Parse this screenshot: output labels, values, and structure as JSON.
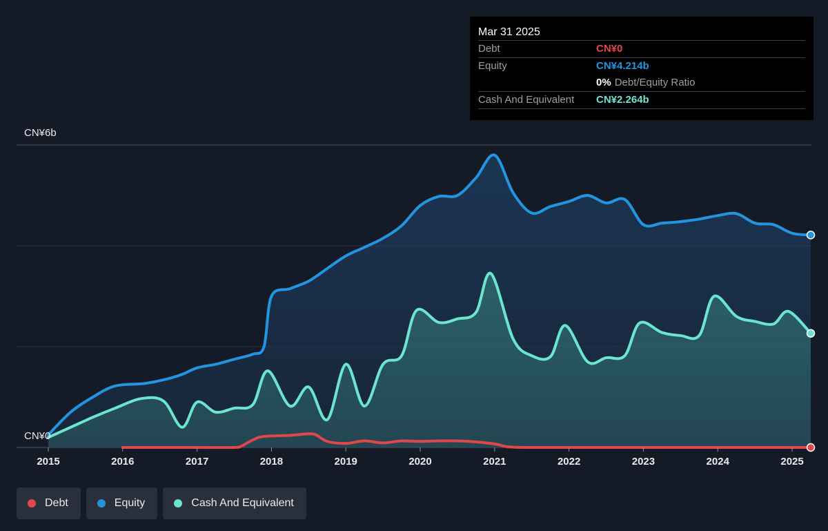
{
  "tooltip": {
    "date": "Mar 31 2025",
    "debt_label": "Debt",
    "debt_value": "CN¥0",
    "equity_label": "Equity",
    "equity_value": "CN¥4.214b",
    "ratio_value": "0%",
    "ratio_label": "Debt/Equity Ratio",
    "cash_label": "Cash And Equivalent",
    "cash_value": "CN¥2.264b"
  },
  "legend": [
    {
      "label": "Debt",
      "color": "#e0474c"
    },
    {
      "label": "Equity",
      "color": "#2394df"
    },
    {
      "label": "Cash And Equivalent",
      "color": "#6ce5d0"
    }
  ],
  "colors": {
    "debt": "#e0474c",
    "equity": "#2394df",
    "cash": "#6ce5d0",
    "grid": "#3a4150",
    "text": "#e8eaed"
  },
  "chart_data": {
    "type": "area",
    "ylim": [
      0,
      6
    ],
    "y_tick_labels": [
      "CN¥6b",
      "CN¥0"
    ],
    "x_ticks": [
      2015,
      2016,
      2017,
      2018,
      2019,
      2020,
      2021,
      2022,
      2023,
      2024,
      2025
    ],
    "x_range": [
      2015.0,
      2025.25
    ],
    "grid": true,
    "legend_position": "bottom-left",
    "series": [
      {
        "name": "Equity",
        "x": [
          2015.0,
          2015.3,
          2015.6,
          2015.9,
          2016.3,
          2016.6,
          2016.8,
          2017.0,
          2017.25,
          2017.5,
          2017.75,
          2017.9,
          2018.0,
          2018.25,
          2018.5,
          2018.75,
          2019.0,
          2019.25,
          2019.5,
          2019.75,
          2020.0,
          2020.25,
          2020.5,
          2020.75,
          2021.0,
          2021.25,
          2021.5,
          2021.75,
          2022.0,
          2022.25,
          2022.5,
          2022.75,
          2023.0,
          2023.25,
          2023.5,
          2023.75,
          2024.0,
          2024.25,
          2024.5,
          2024.75,
          2025.0,
          2025.25
        ],
        "values": [
          0.25,
          0.7,
          1.0,
          1.22,
          1.27,
          1.36,
          1.45,
          1.58,
          1.65,
          1.75,
          1.85,
          2.0,
          3.0,
          3.15,
          3.3,
          3.55,
          3.8,
          3.97,
          4.15,
          4.4,
          4.8,
          4.98,
          5.0,
          5.35,
          5.8,
          5.05,
          4.65,
          4.78,
          4.88,
          5.0,
          4.85,
          4.92,
          4.42,
          4.45,
          4.48,
          4.53,
          4.6,
          4.64,
          4.45,
          4.42,
          4.25,
          4.214
        ]
      },
      {
        "name": "Cash And Equivalent",
        "x": [
          2015.0,
          2015.3,
          2015.6,
          2015.9,
          2016.25,
          2016.55,
          2016.8,
          2017.0,
          2017.25,
          2017.5,
          2017.75,
          2017.95,
          2018.25,
          2018.5,
          2018.75,
          2019.0,
          2019.25,
          2019.5,
          2019.75,
          2019.95,
          2020.25,
          2020.5,
          2020.75,
          2020.95,
          2021.25,
          2021.5,
          2021.75,
          2021.95,
          2022.25,
          2022.5,
          2022.75,
          2022.95,
          2023.25,
          2023.5,
          2023.75,
          2023.95,
          2024.25,
          2024.5,
          2024.75,
          2024.95,
          2025.25
        ],
        "values": [
          0.2,
          0.4,
          0.6,
          0.78,
          0.97,
          0.92,
          0.4,
          0.9,
          0.7,
          0.78,
          0.85,
          1.52,
          0.82,
          1.2,
          0.55,
          1.65,
          0.82,
          1.65,
          1.82,
          2.72,
          2.48,
          2.55,
          2.68,
          3.45,
          2.15,
          1.82,
          1.8,
          2.42,
          1.7,
          1.78,
          1.82,
          2.47,
          2.28,
          2.22,
          2.22,
          3.0,
          2.6,
          2.5,
          2.45,
          2.7,
          2.264
        ]
      },
      {
        "name": "Debt",
        "x": [
          2016.0,
          2016.5,
          2017.0,
          2017.5,
          2017.6,
          2017.75,
          2017.9,
          2018.25,
          2018.5,
          2018.6,
          2018.75,
          2019.0,
          2019.25,
          2019.5,
          2019.75,
          2020.0,
          2020.25,
          2020.5,
          2020.75,
          2021.0,
          2021.2,
          2021.5,
          2022.0,
          2023.0,
          2024.0,
          2025.0,
          2025.25
        ],
        "values": [
          0.0,
          0.0,
          0.0,
          0.0,
          0.03,
          0.15,
          0.22,
          0.24,
          0.27,
          0.25,
          0.12,
          0.08,
          0.13,
          0.09,
          0.13,
          0.12,
          0.13,
          0.13,
          0.11,
          0.07,
          0.01,
          0.0,
          0.0,
          0.0,
          0.0,
          0.0,
          0.0
        ]
      }
    ]
  }
}
